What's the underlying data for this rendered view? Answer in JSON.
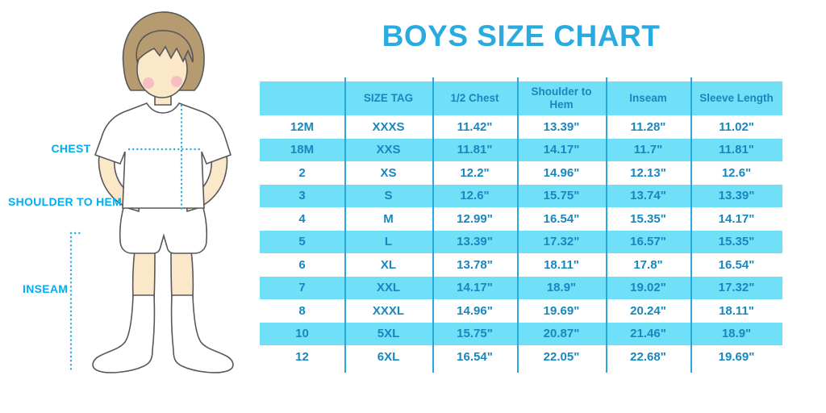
{
  "chart_data": {
    "type": "table",
    "title": "BOYS SIZE CHART",
    "columns": [
      "",
      "SIZE TAG",
      "1/2 Chest",
      "Shoulder to Hem",
      "Inseam",
      "Sleeve Length"
    ],
    "rows": [
      [
        "12M",
        "XXXS",
        "11.42\"",
        "13.39\"",
        "11.28\"",
        "11.02\""
      ],
      [
        "18M",
        "XXS",
        "11.81\"",
        "14.17\"",
        "11.7\"",
        "11.81\""
      ],
      [
        "2",
        "XS",
        "12.2\"",
        "14.96\"",
        "12.13\"",
        "12.6\""
      ],
      [
        "3",
        "S",
        "12.6\"",
        "15.75\"",
        "13.74\"",
        "13.39\""
      ],
      [
        "4",
        "M",
        "12.99\"",
        "16.54\"",
        "15.35\"",
        "14.17\""
      ],
      [
        "5",
        "L",
        "13.39\"",
        "17.32\"",
        "16.57\"",
        "15.35\""
      ],
      [
        "6",
        "XL",
        "13.78\"",
        "18.11\"",
        "17.8\"",
        "16.54\""
      ],
      [
        "7",
        "XXL",
        "14.17\"",
        "18.9\"",
        "19.02\"",
        "17.32\""
      ],
      [
        "8",
        "XXXL",
        "14.96\"",
        "19.69\"",
        "20.24\"",
        "18.11\""
      ],
      [
        "10",
        "5XL",
        "15.75\"",
        "20.87\"",
        "21.46\"",
        "18.9\""
      ],
      [
        "12",
        "6XL",
        "16.54\"",
        "22.05\"",
        "22.68\"",
        "19.69\""
      ]
    ],
    "layout": {
      "row_striping": "alternating white and cyan, first data row white",
      "header_background": "cyan",
      "column_dividers": "vertical blue lines between all columns"
    }
  },
  "figure": {
    "labels": {
      "chest": "CHEST",
      "shoulder_to_hem": "SHOULDER TO HEM",
      "inseam": "INSEAM"
    }
  },
  "colors": {
    "title_blue": "#29ABE2",
    "label_cyan": "#00AEEF",
    "stripe_cyan": "#70DFF8",
    "table_text_blue": "#1787BE",
    "divider_blue": "#2AA8DC",
    "hair_brown": "#B79B70",
    "skin": "#FBE8C8",
    "blush_pink": "#F6B3C1",
    "outline_gray": "#58585A"
  }
}
